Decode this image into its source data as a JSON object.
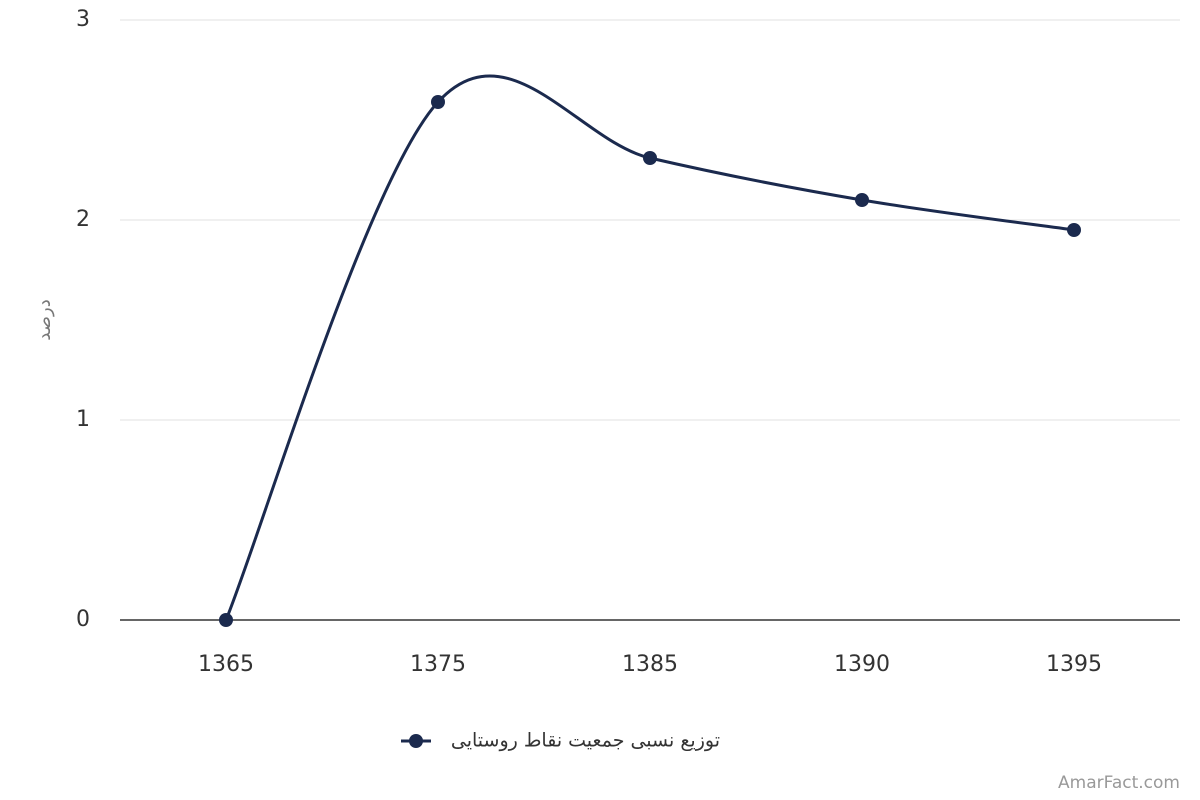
{
  "chart_data": {
    "type": "line",
    "y_label": "درصد",
    "categories": [
      "1365",
      "1375",
      "1385",
      "1390",
      "1395"
    ],
    "series": [
      {
        "name": "توزیع نسبی جمعیت نقاط روستایی",
        "color": "#1b2a4e",
        "values": [
          0,
          2.59,
          2.31,
          2.1,
          1.95
        ]
      }
    ],
    "ylim": [
      0,
      3
    ],
    "yticks": [
      0,
      1,
      2,
      3
    ],
    "grid": true,
    "legend": "bottom",
    "watermark": "AmarFact.com"
  }
}
